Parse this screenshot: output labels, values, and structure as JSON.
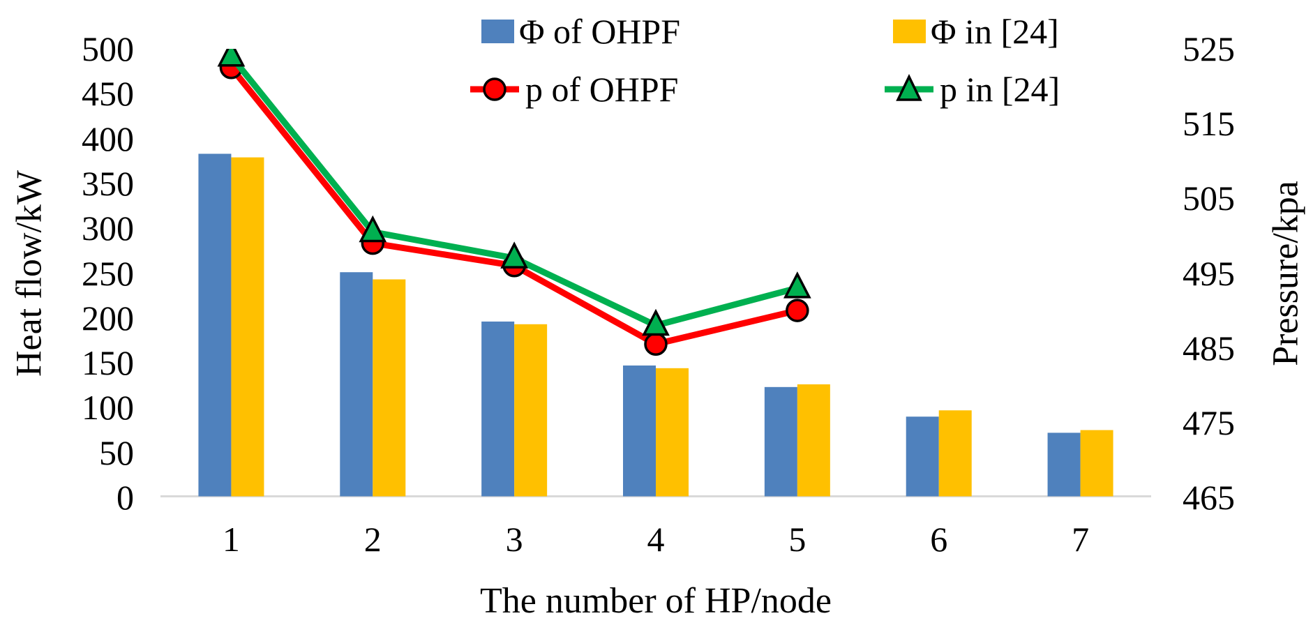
{
  "legend": {
    "items": [
      {
        "label": "Φ of OHPF",
        "type": "bar",
        "marker": "square-swatch",
        "color": "#4F81BD"
      },
      {
        "label": "Φ in [24]",
        "type": "bar",
        "marker": "square-swatch",
        "color": "#FFC000"
      },
      {
        "label": "p of OHPF",
        "type": "line",
        "marker": "circle-marker",
        "color": "#FF0000"
      },
      {
        "label": "p in [24]",
        "type": "line",
        "marker": "triangle-marker",
        "color": "#00B050"
      }
    ]
  },
  "axes": {
    "left_title": "Heat flow/kW",
    "right_title": "Pressure/kpa",
    "x_title": "The number of HP/node",
    "left_ticks": [
      "500",
      "450",
      "400",
      "350",
      "300",
      "250",
      "200",
      "150",
      "100",
      "50",
      "0"
    ],
    "right_ticks": [
      "525",
      "515",
      "505",
      "495",
      "485",
      "475",
      "465"
    ],
    "x_ticks": [
      "1",
      "2",
      "3",
      "4",
      "5",
      "6",
      "7"
    ]
  },
  "colors": {
    "bar_blue": "#4F81BD",
    "bar_yellow": "#FFC000",
    "line_red": "#FF0000",
    "line_green": "#00B050",
    "marker_outline": "#000000",
    "axis_line": "#D9D9D9",
    "text": "#000000"
  },
  "chart_data": {
    "type": "bar",
    "subtype": "combo-bar-line-dual-axis",
    "categories": [
      1,
      2,
      3,
      4,
      5,
      6,
      7
    ],
    "xlabel": "The number of HP/node",
    "grid": false,
    "legend_position": "top",
    "y_left": {
      "label": "Heat flow/kW",
      "min": 0,
      "max": 500,
      "step": 50
    },
    "y_right": {
      "label": "Pressure/kpa",
      "min": 465,
      "max": 525,
      "step": 10
    },
    "series": [
      {
        "name": "Φ of OHPF",
        "type": "bar",
        "axis": "left",
        "color": "#4F81BD",
        "values": [
          383,
          251,
          196,
          147,
          123,
          90,
          72
        ]
      },
      {
        "name": "Φ in [24]",
        "type": "bar",
        "axis": "left",
        "color": "#FFC000",
        "values": [
          379,
          243,
          193,
          144,
          126,
          97,
          75
        ]
      },
      {
        "name": "p of OHPF",
        "type": "line",
        "axis": "right",
        "color": "#FF0000",
        "marker": "circle",
        "values": [
          522.5,
          499,
          496,
          485.5,
          490,
          null,
          null
        ]
      },
      {
        "name": "p in [24]",
        "type": "line",
        "axis": "right",
        "color": "#00B050",
        "marker": "triangle",
        "values": [
          524,
          500.5,
          497,
          488,
          493,
          null,
          null
        ]
      }
    ]
  }
}
